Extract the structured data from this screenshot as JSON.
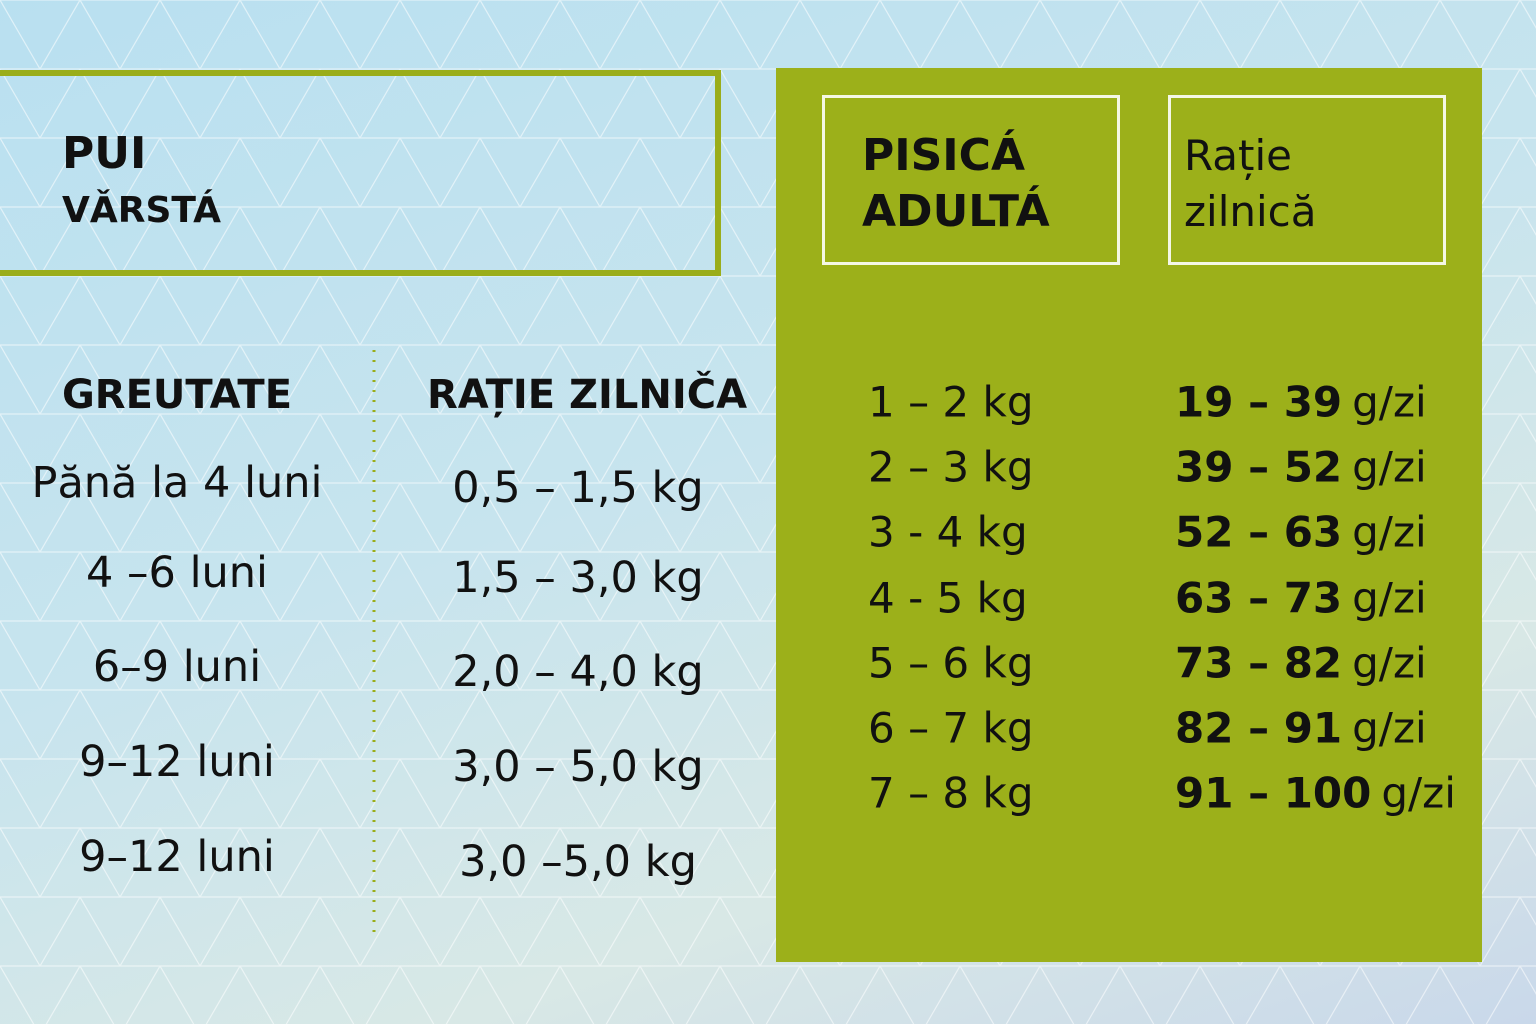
{
  "left": {
    "title": "PUI",
    "subtitle": "VǍRSTÁ",
    "headers": [
      "GREUTATE",
      "RAȚIE ZILNIČA"
    ],
    "rows": [
      [
        "Pănă la 4 luni",
        "0,5 – 1,5 kg"
      ],
      [
        "4 –6 luni",
        "1,5 – 3,0 kg"
      ],
      [
        "6–9 luni",
        "2,0 – 4,0 kg"
      ],
      [
        "9–12 luni",
        "3,0 – 5,0 kg"
      ],
      [
        "9–12 luni",
        "3,0 –5,0 kg"
      ]
    ]
  },
  "right": {
    "title": [
      "PISICÁ",
      "ADULTÁ"
    ],
    "subtitle": [
      "Rație",
      "zilnică"
    ],
    "rows": [
      {
        "weight": "1 – 2 kg",
        "range": "19 – 39",
        "unit": "g/zi"
      },
      {
        "weight": "2 – 3 kg",
        "range": "39 – 52",
        "unit": "g/zi"
      },
      {
        "weight": "3 - 4 kg",
        "range": "52 – 63",
        "unit": "g/zi"
      },
      {
        "weight": "4 - 5 kg",
        "range": "63 – 73",
        "unit": "g/zi"
      },
      {
        "weight": "5 – 6 kg",
        "range": "73 – 82",
        "unit": "g/zi"
      },
      {
        "weight": "6 – 7 kg",
        "range": "82  – 91",
        "unit": "g/zi"
      },
      {
        "weight": "7 – 8 kg",
        "range": "91 – 100",
        "unit": "g/zi"
      }
    ]
  }
}
